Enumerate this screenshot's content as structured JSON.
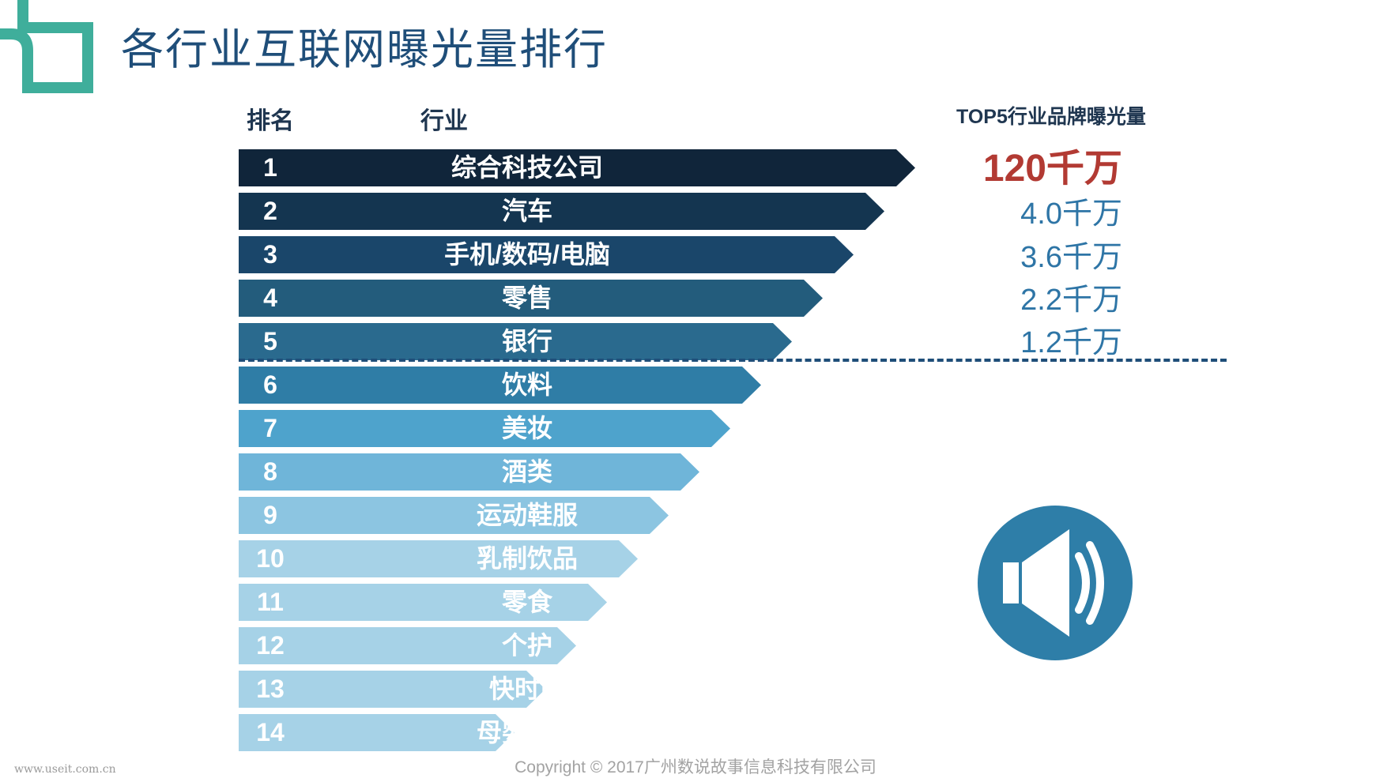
{
  "title": "各行业互联网曝光量排行",
  "headers": {
    "rank": "排名",
    "industry": "行业",
    "top5": "TOP5行业品牌曝光量"
  },
  "rows": [
    {
      "rank": "1",
      "industry": "综合科技公司",
      "color": "#10253a"
    },
    {
      "rank": "2",
      "industry": "汽车",
      "color": "#143550"
    },
    {
      "rank": "3",
      "industry": "手机/数码/电脑",
      "color": "#1a466a"
    },
    {
      "rank": "4",
      "industry": "零售",
      "color": "#235c7c"
    },
    {
      "rank": "5",
      "industry": "银行",
      "color": "#2a6a8e"
    },
    {
      "rank": "6",
      "industry": "饮料",
      "color": "#2f7da6"
    },
    {
      "rank": "7",
      "industry": "美妆",
      "color": "#4ea3cc"
    },
    {
      "rank": "8",
      "industry": "酒类",
      "color": "#6fb5d9"
    },
    {
      "rank": "9",
      "industry": "运动鞋服",
      "color": "#8cc5e1"
    },
    {
      "rank": "10",
      "industry": "乳制饮品",
      "color": "#a6d2e7"
    },
    {
      "rank": "11",
      "industry": "零食",
      "color": "#a6d2e7"
    },
    {
      "rank": "12",
      "industry": "个护",
      "color": "#a6d2e7"
    },
    {
      "rank": "13",
      "industry": "快时尚",
      "color": "#a6d2e7"
    },
    {
      "rank": "14",
      "industry": "母婴用品",
      "color": "#a6d2e7"
    }
  ],
  "top5_values": [
    {
      "text": "120千万",
      "color": "#b23a33",
      "emphasis": true
    },
    {
      "text": "4.0千万",
      "color": "#2e75a6"
    },
    {
      "text": "3.6千万",
      "color": "#2e75a6"
    },
    {
      "text": "2.2千万",
      "color": "#2e75a6"
    },
    {
      "text": "1.2千万",
      "color": "#2e75a6"
    }
  ],
  "logo_color": "#3fae9b",
  "speaker": {
    "icon": "speaker-volume-icon",
    "color": "#2e7ea8"
  },
  "copyright": "Copyright © 2017广州数说故事信息科技有限公司",
  "watermark": "www.useit.com.cn"
}
